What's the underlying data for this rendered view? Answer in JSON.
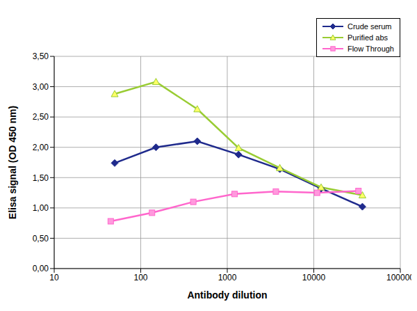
{
  "chart_data": {
    "type": "line",
    "x_label": "Antibody dilution",
    "y_label": "Elisa signal (OD 450 nm)",
    "log": "x",
    "grid": true,
    "legend": "top-right",
    "xlim": [
      10,
      100000
    ],
    "xticks": [
      10,
      100,
      1000,
      10000,
      100000
    ],
    "ylim": [
      0,
      3.5
    ],
    "yticks": [
      {
        "value": 0,
        "label": "0,00"
      },
      {
        "value": 0.5,
        "label": "0,50"
      },
      {
        "value": 1,
        "label": "1,00"
      },
      {
        "value": 1.5,
        "label": "1,50"
      },
      {
        "value": 2,
        "label": "2,00"
      },
      {
        "value": 2.5,
        "label": "2,50"
      },
      {
        "value": 3,
        "label": "3,00"
      },
      {
        "value": 3.5,
        "label": "3,50"
      }
    ],
    "series": [
      {
        "name": "Crude serum",
        "color": "#1f2a8c",
        "marker": "diamond",
        "x": [
          50,
          150,
          450,
          1350,
          4050,
          12150,
          36450
        ],
        "values": [
          1.74,
          2.0,
          2.1,
          1.88,
          1.64,
          1.32,
          1.02
        ]
      },
      {
        "name": "Purified abs",
        "color": "#99cc33",
        "marker": "triangle",
        "x": [
          50,
          150,
          450,
          1350,
          4050,
          12150,
          36450
        ],
        "values": [
          2.88,
          3.08,
          2.63,
          1.99,
          1.66,
          1.34,
          1.21
        ]
      },
      {
        "name": "Flow Through",
        "color": "#ff66cc",
        "marker": "square",
        "x": [
          45,
          135,
          405,
          1215,
          3645,
          10935,
          32805
        ],
        "values": [
          0.78,
          0.92,
          1.1,
          1.23,
          1.27,
          1.25,
          1.28
        ]
      }
    ]
  }
}
